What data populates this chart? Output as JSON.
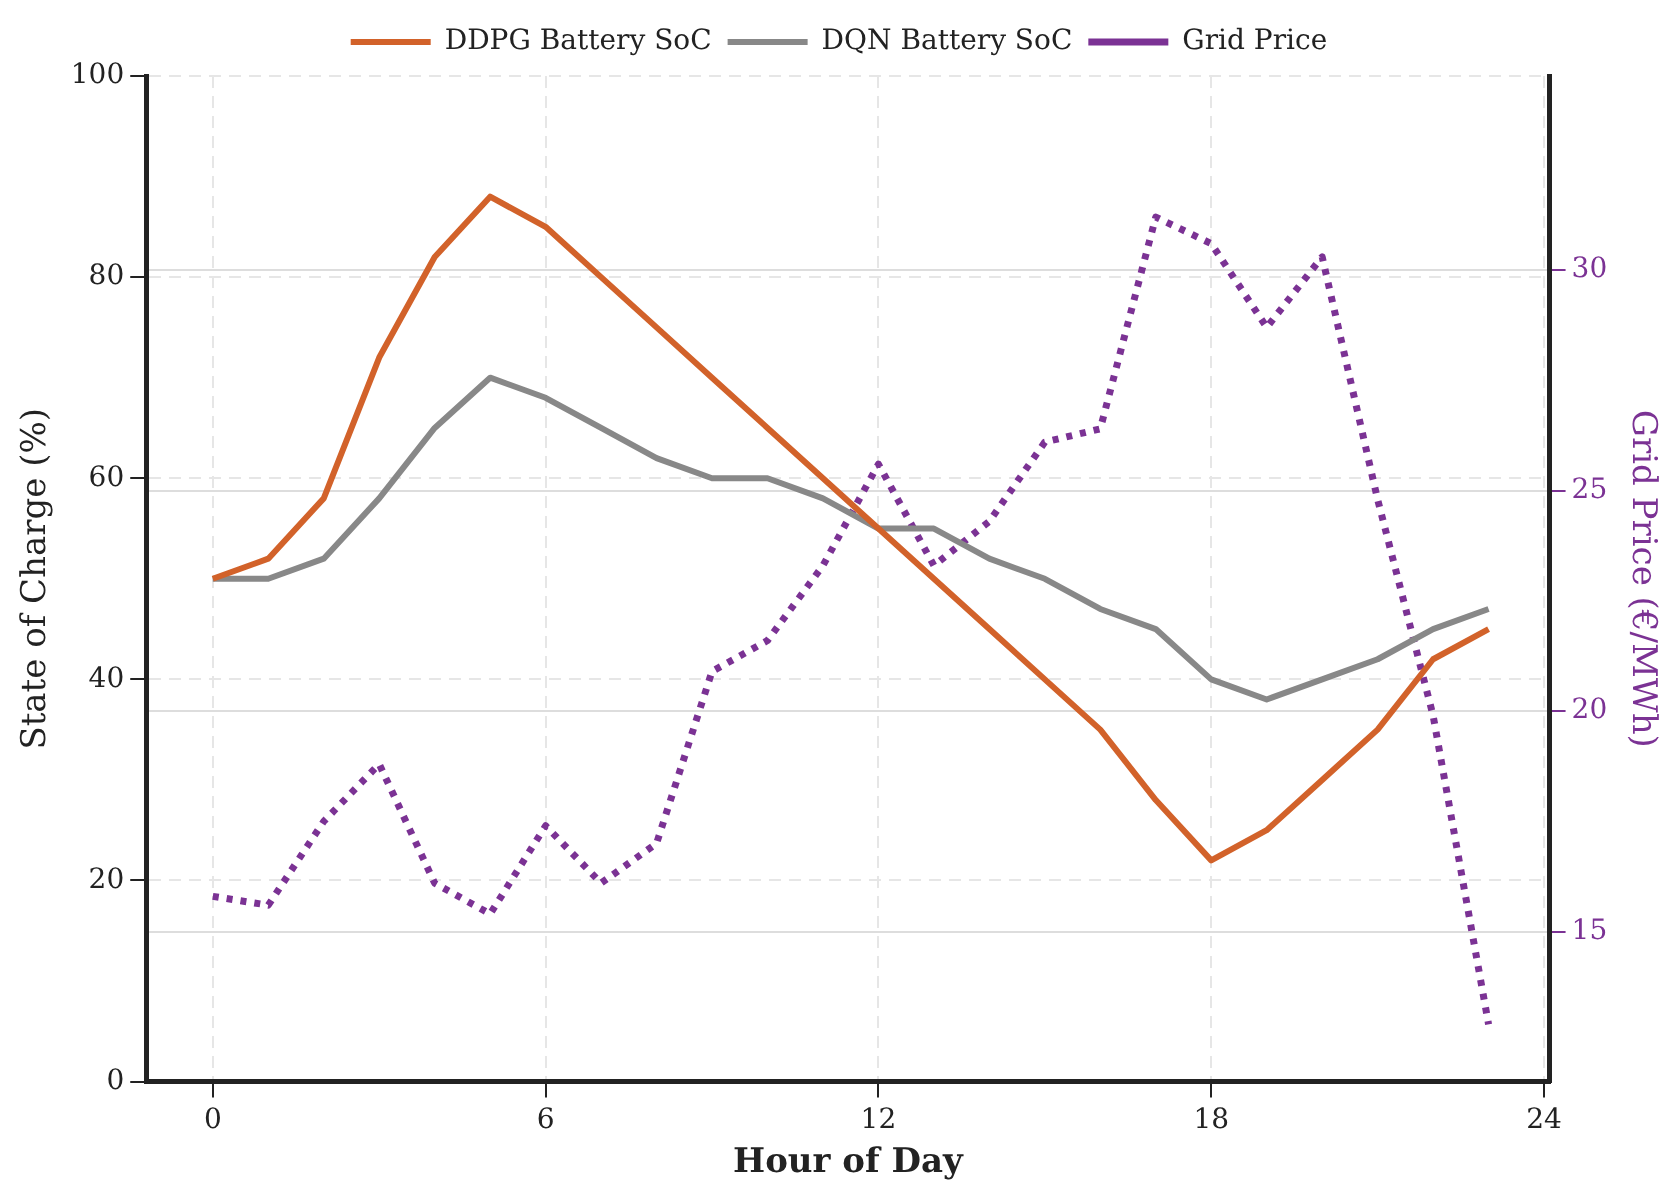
{
  "chart_data": {
    "type": "line",
    "xlabel": "Hour of Day",
    "ylabel": "State of Charge (%)",
    "y2label": "Grid Price (€/MWh)",
    "x": [
      0,
      1,
      2,
      3,
      4,
      5,
      6,
      7,
      8,
      9,
      10,
      11,
      12,
      13,
      14,
      15,
      16,
      17,
      18,
      19,
      20,
      21,
      22,
      23
    ],
    "series": [
      {
        "name": "DDPG Battery SoC",
        "color": "#d2622a",
        "line_style": "solid",
        "values": [
          50,
          52,
          58,
          72,
          82,
          88,
          85,
          80,
          75,
          70,
          65,
          60,
          55,
          50,
          45,
          40,
          35,
          28,
          22,
          25,
          30,
          35,
          42,
          45
        ]
      },
      {
        "name": "DQN Battery SoC",
        "color": "#888888",
        "line_style": "solid",
        "values": [
          50,
          50,
          52,
          58,
          65,
          70,
          68,
          65,
          62,
          60,
          60,
          58,
          55,
          55,
          52,
          50,
          47,
          45,
          40,
          38,
          40,
          42,
          45,
          47
        ]
      },
      {
        "name": "Grid Price",
        "color": "#7b3294",
        "line_style": "dotted",
        "axis": "y2",
        "values": [
          15.8,
          15.6,
          17.5,
          18.8,
          16.1,
          15.4,
          17.4,
          16.1,
          17.0,
          20.9,
          21.6,
          23.3,
          25.6,
          23.3,
          24.3,
          26.1,
          26.4,
          31.2,
          30.6,
          28.7,
          30.3,
          24.8,
          19.9,
          12.9
        ]
      }
    ],
    "xlim": [
      -1.2,
      24.1
    ],
    "xticks": [
      0,
      6,
      12,
      18,
      24
    ],
    "ylim": [
      0,
      100
    ],
    "yticks": [
      0,
      20,
      40,
      60,
      80,
      100
    ],
    "y2lim": [
      11.6,
      34.4
    ],
    "y2ticks": [
      15,
      20,
      25,
      30
    ],
    "grid": true,
    "legend": "top",
    "marker": "none"
  }
}
